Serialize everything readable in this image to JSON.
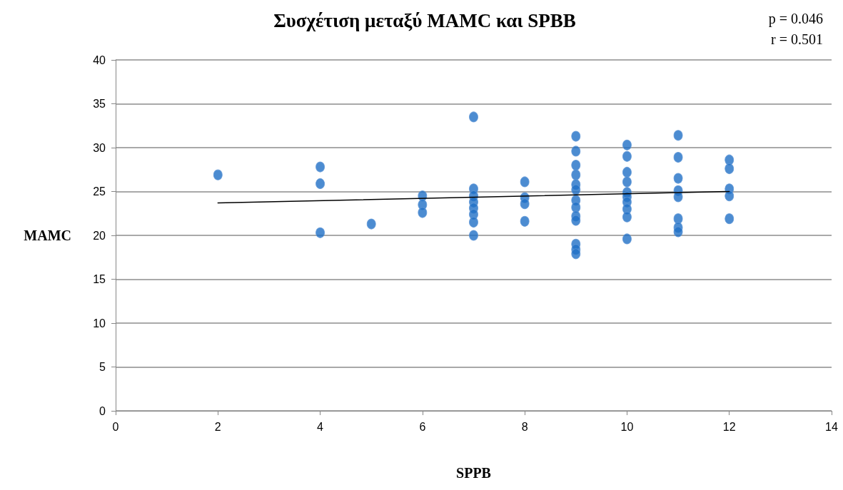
{
  "chart_data": {
    "type": "scatter",
    "title": "Συσχέτιση μεταξύ MAMC και SPBB",
    "xlabel": "SPPB",
    "ylabel": "MAMC",
    "annotations": [
      "p = 0.046",
      "r = 0.501"
    ],
    "series": [
      {
        "color": "#1f6fc5",
        "marker": "circle",
        "x": [
          2,
          4,
          4,
          4,
          5,
          6,
          6,
          6,
          7,
          7,
          7,
          7,
          7,
          7,
          7,
          7,
          8,
          8,
          8,
          8,
          9,
          9,
          9,
          9,
          9,
          9,
          9,
          9,
          9,
          9,
          9,
          9,
          9,
          10,
          10,
          10,
          10,
          10,
          10,
          10,
          10,
          10,
          10,
          11,
          11,
          11,
          11,
          11,
          11,
          11,
          11,
          12,
          12,
          12,
          12,
          12
        ],
        "values": [
          26.9,
          27.8,
          25.9,
          20.3,
          21.3,
          24.5,
          23.5,
          22.6,
          33.5,
          25.3,
          24.5,
          23.8,
          23.1,
          22.4,
          21.5,
          20.0,
          26.1,
          24.3,
          23.6,
          21.6,
          31.3,
          29.6,
          28.0,
          26.9,
          25.8,
          25.2,
          24.0,
          23.2,
          22.2,
          21.7,
          19.0,
          18.4,
          17.9,
          30.3,
          29.0,
          27.2,
          26.1,
          24.9,
          24.4,
          23.8,
          23.0,
          22.1,
          19.6,
          31.4,
          28.9,
          26.5,
          25.1,
          24.4,
          21.9,
          20.9,
          20.4,
          28.6,
          27.6,
          25.3,
          24.5,
          21.9
        ]
      },
      {
        "type": "line",
        "color": "#000000",
        "marker": "none",
        "x": [
          2,
          12
        ],
        "values": [
          23.7,
          25.0
        ]
      }
    ],
    "xlim": [
      0,
      14
    ],
    "xticks": [
      0,
      2,
      4,
      6,
      8,
      10,
      12,
      14
    ],
    "ylim": [
      0,
      40
    ],
    "yticks": [
      0,
      5,
      10,
      15,
      20,
      25,
      30,
      35,
      40
    ],
    "grid": "y"
  }
}
